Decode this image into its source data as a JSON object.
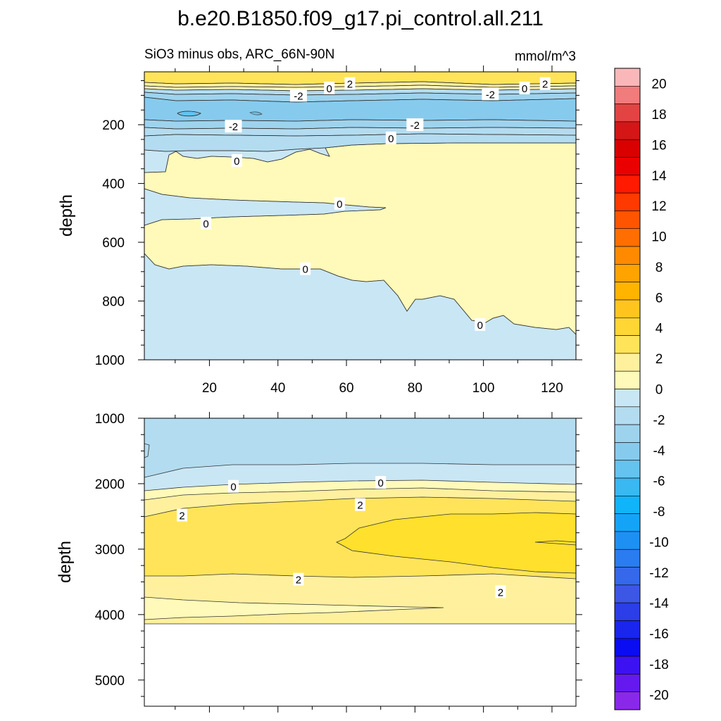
{
  "figure": {
    "title": "b.e20.B1850.f09_g17.pi_control.all.211",
    "subtitle_left": "SiO3 minus obs, ARC_66N-90N",
    "subtitle_right": "mmol/m^3"
  },
  "chart_data": [
    {
      "type": "heatmap",
      "panel": "upper",
      "ylabel": "depth",
      "xlabel": "",
      "xlim": [
        1,
        127
      ],
      "ylim": [
        1000,
        20
      ],
      "x_ticks": [
        "20",
        "40",
        "60",
        "80",
        "100",
        "120"
      ],
      "y_ticks": [
        "200",
        "400",
        "600",
        "800",
        "1000"
      ],
      "contour_labels": [
        {
          "text": "2",
          "x": 61,
          "y": 60
        },
        {
          "text": "2",
          "x": 118,
          "y": 60
        },
        {
          "text": "0",
          "x": 55,
          "y": 75
        },
        {
          "text": "0",
          "x": 112,
          "y": 75
        },
        {
          "text": "-2",
          "x": 46,
          "y": 100
        },
        {
          "text": "-2",
          "x": 102,
          "y": 95
        },
        {
          "text": "-2",
          "x": 27,
          "y": 205
        },
        {
          "text": "-2",
          "x": 80,
          "y": 200
        },
        {
          "text": "0",
          "x": 73,
          "y": 245
        },
        {
          "text": "0",
          "x": 28,
          "y": 322
        },
        {
          "text": "0",
          "x": 58,
          "y": 468
        },
        {
          "text": "0",
          "x": 19,
          "y": 535
        },
        {
          "text": "0",
          "x": 48,
          "y": 690
        },
        {
          "text": "0",
          "x": 99,
          "y": 880
        }
      ]
    },
    {
      "type": "heatmap",
      "panel": "lower",
      "ylabel": "depth",
      "xlabel": "",
      "xlim": [
        1,
        127
      ],
      "ylim": [
        5400,
        1000
      ],
      "y_ticks": [
        "1000",
        "2000",
        "3000",
        "4000",
        "5000"
      ],
      "contour_labels": [
        {
          "text": "0",
          "x": 27,
          "y": 2040
        },
        {
          "text": "0",
          "x": 70,
          "y": 1980
        },
        {
          "text": "2",
          "x": 64,
          "y": 2320
        },
        {
          "text": "2",
          "x": 12,
          "y": 2480
        },
        {
          "text": "2",
          "x": 46,
          "y": 3460
        },
        {
          "text": "2",
          "x": 105,
          "y": 3650
        }
      ]
    }
  ],
  "colorbar": {
    "labels": [
      "20",
      "18",
      "16",
      "14",
      "12",
      "10",
      "8",
      "6",
      "4",
      "2",
      "0",
      "-2",
      "-4",
      "-6",
      "-8",
      "-10",
      "-12",
      "-14",
      "-16",
      "-18",
      "-20"
    ],
    "colors": [
      "#f9b7b9",
      "#f07c7c",
      "#e34343",
      "#d41616",
      "#da0000",
      "#eb0000",
      "#ff1a00",
      "#ff3a00",
      "#ff5500",
      "#ff6e00",
      "#ff8a00",
      "#ffa300",
      "#ffb400",
      "#ffc51e",
      "#ffd633",
      "#ffe45a",
      "#fff09e",
      "#fffab9",
      "#c9e6f5",
      "#b3dcf0",
      "#9ed3ee",
      "#86cbee",
      "#65c3ef",
      "#3ab8f2",
      "#10b4f8",
      "#14a4f7",
      "#1e90f4",
      "#2a7cf0",
      "#3568ea",
      "#3c57e6",
      "#2b3ee8",
      "#1a25ed",
      "#0a0cf2",
      "#3c12f2",
      "#6519ef",
      "#8a28ea"
    ],
    "range": [
      -21,
      21
    ]
  },
  "palette": {
    "yellow_0_1": "#fffab9",
    "yellow_1_2": "#fff09e",
    "yellow_2_3": "#ffe45a",
    "yellow_3_4": "#ffe02d",
    "blue_0_1": "#c9e6f5",
    "blue_1_2": "#b3dcf0",
    "blue_2_3": "#9ed3ee",
    "blue_3_4": "#86cbee",
    "blue_4_5": "#65c3ef"
  }
}
